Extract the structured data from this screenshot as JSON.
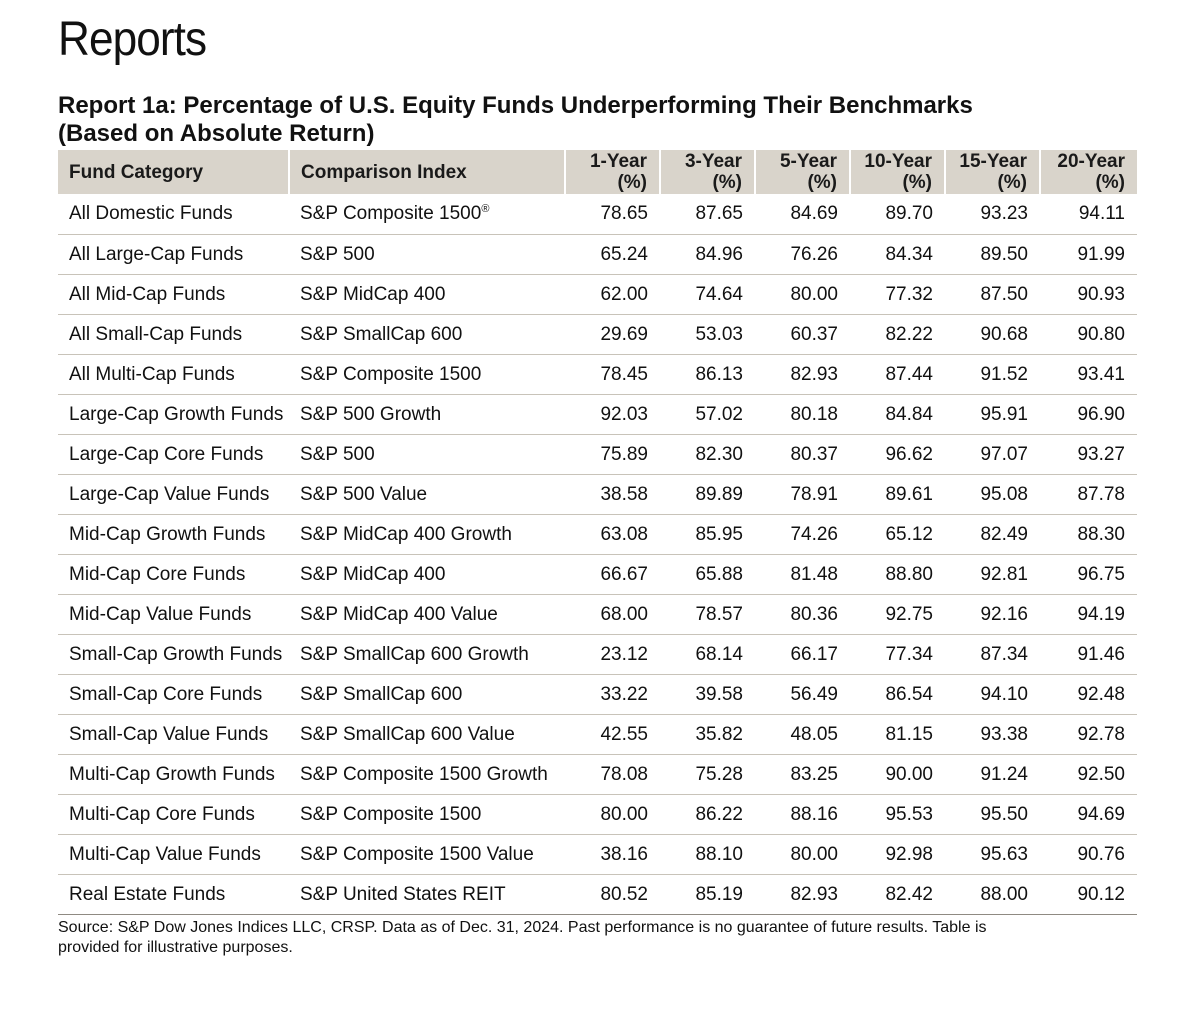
{
  "page": {
    "heading": "Reports"
  },
  "report": {
    "title_line1": "Report 1a: Percentage of U.S. Equity Funds Underperforming Their Benchmarks",
    "title_line2": "(Based on Absolute Return)",
    "columns": [
      {
        "line1": "Fund Category",
        "line2": ""
      },
      {
        "line1": "Comparison Index",
        "line2": ""
      },
      {
        "line1": "1-Year",
        "line2": "(%)"
      },
      {
        "line1": "3-Year",
        "line2": "(%)"
      },
      {
        "line1": "5-Year",
        "line2": "(%)"
      },
      {
        "line1": "10-Year",
        "line2": "(%)"
      },
      {
        "line1": "15-Year",
        "line2": "(%)"
      },
      {
        "line1": "20-Year",
        "line2": "(%)"
      }
    ],
    "rows": [
      {
        "category": "All Domestic Funds",
        "index": "S&P Composite 1500",
        "index_mark": "®",
        "values": [
          "78.65",
          "87.65",
          "84.69",
          "89.70",
          "93.23",
          "94.11"
        ]
      },
      {
        "category": "All Large-Cap Funds",
        "index": "S&P 500",
        "index_mark": "",
        "values": [
          "65.24",
          "84.96",
          "76.26",
          "84.34",
          "89.50",
          "91.99"
        ]
      },
      {
        "category": "All Mid-Cap Funds",
        "index": "S&P MidCap 400",
        "index_mark": "",
        "values": [
          "62.00",
          "74.64",
          "80.00",
          "77.32",
          "87.50",
          "90.93"
        ]
      },
      {
        "category": "All Small-Cap Funds",
        "index": "S&P SmallCap 600",
        "index_mark": "",
        "values": [
          "29.69",
          "53.03",
          "60.37",
          "82.22",
          "90.68",
          "90.80"
        ]
      },
      {
        "category": "All Multi-Cap Funds",
        "index": "S&P Composite 1500",
        "index_mark": "",
        "values": [
          "78.45",
          "86.13",
          "82.93",
          "87.44",
          "91.52",
          "93.41"
        ]
      },
      {
        "category": "Large-Cap Growth Funds",
        "index": "S&P 500 Growth",
        "index_mark": "",
        "values": [
          "92.03",
          "57.02",
          "80.18",
          "84.84",
          "95.91",
          "96.90"
        ]
      },
      {
        "category": "Large-Cap Core Funds",
        "index": "S&P 500",
        "index_mark": "",
        "values": [
          "75.89",
          "82.30",
          "80.37",
          "96.62",
          "97.07",
          "93.27"
        ]
      },
      {
        "category": "Large-Cap Value Funds",
        "index": "S&P 500 Value",
        "index_mark": "",
        "values": [
          "38.58",
          "89.89",
          "78.91",
          "89.61",
          "95.08",
          "87.78"
        ]
      },
      {
        "category": "Mid-Cap Growth Funds",
        "index": "S&P MidCap 400 Growth",
        "index_mark": "",
        "values": [
          "63.08",
          "85.95",
          "74.26",
          "65.12",
          "82.49",
          "88.30"
        ]
      },
      {
        "category": "Mid-Cap Core Funds",
        "index": "S&P MidCap 400",
        "index_mark": "",
        "values": [
          "66.67",
          "65.88",
          "81.48",
          "88.80",
          "92.81",
          "96.75"
        ]
      },
      {
        "category": "Mid-Cap Value Funds",
        "index": "S&P MidCap 400 Value",
        "index_mark": "",
        "values": [
          "68.00",
          "78.57",
          "80.36",
          "92.75",
          "92.16",
          "94.19"
        ]
      },
      {
        "category": "Small-Cap Growth Funds",
        "index": "S&P SmallCap 600 Growth",
        "index_mark": "",
        "values": [
          "23.12",
          "68.14",
          "66.17",
          "77.34",
          "87.34",
          "91.46"
        ]
      },
      {
        "category": "Small-Cap Core Funds",
        "index": "S&P SmallCap 600",
        "index_mark": "",
        "values": [
          "33.22",
          "39.58",
          "56.49",
          "86.54",
          "94.10",
          "92.48"
        ]
      },
      {
        "category": "Small-Cap Value Funds",
        "index": "S&P SmallCap 600 Value",
        "index_mark": "",
        "values": [
          "42.55",
          "35.82",
          "48.05",
          "81.15",
          "93.38",
          "92.78"
        ]
      },
      {
        "category": "Multi-Cap Growth Funds",
        "index": "S&P Composite 1500 Growth",
        "index_mark": "",
        "values": [
          "78.08",
          "75.28",
          "83.25",
          "90.00",
          "91.24",
          "92.50"
        ]
      },
      {
        "category": "Multi-Cap Core Funds",
        "index": "S&P Composite 1500",
        "index_mark": "",
        "values": [
          "80.00",
          "86.22",
          "88.16",
          "95.53",
          "95.50",
          "94.69"
        ]
      },
      {
        "category": "Multi-Cap Value Funds",
        "index": "S&P Composite 1500 Value",
        "index_mark": "",
        "values": [
          "38.16",
          "88.10",
          "80.00",
          "92.98",
          "95.63",
          "90.76"
        ]
      },
      {
        "category": "Real Estate Funds",
        "index": "S&P United States REIT",
        "index_mark": "",
        "values": [
          "80.52",
          "85.19",
          "82.93",
          "82.42",
          "88.00",
          "90.12"
        ]
      }
    ],
    "footnote_line1": "Source: S&P Dow Jones Indices LLC, CRSP.  Data as of Dec. 31, 2024.  Past performance is no guarantee of future results.  Table is",
    "footnote_line2": "provided for illustrative purposes."
  },
  "colors": {
    "header_background": "#d9d4cb",
    "row_divider": "#c8c3b9",
    "text": "#111111"
  }
}
